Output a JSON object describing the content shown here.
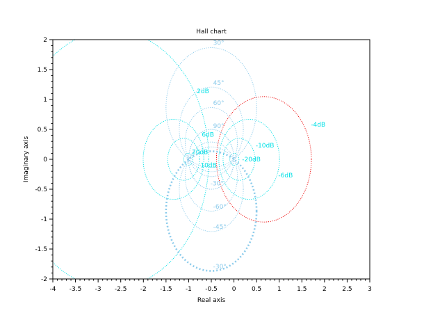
{
  "chart_data": {
    "type": "hall-chart",
    "title": "Hall chart",
    "xlabel": "Real axis",
    "ylabel": "Imaginary axis",
    "xlim": [
      -4,
      3
    ],
    "ylim": [
      -2,
      2
    ],
    "xticks": [
      -4,
      -3.5,
      -3,
      -2.5,
      -2,
      -1.5,
      -1,
      -0.5,
      0,
      0.5,
      1,
      1.5,
      2,
      2.5,
      3
    ],
    "xtick_labels": [
      "-4",
      "-3.5",
      "-3",
      "-2.5",
      "-2",
      "-1.5",
      "-1",
      "-0.5",
      "0",
      "0.5",
      "1",
      "1.5",
      "2",
      "2.5",
      "3"
    ],
    "yticks": [
      -2,
      -1.5,
      -1,
      -0.5,
      0,
      0.5,
      1,
      1.5,
      2
    ],
    "ytick_labels": [
      "-2",
      "-1.5",
      "-1",
      "-0.5",
      "0",
      "0.5",
      "1",
      "1.5",
      "2"
    ],
    "grid": false,
    "magnitude_contours_db": [
      -20,
      -10,
      -6,
      -4,
      2,
      6,
      10,
      20
    ],
    "phase_contours_deg": [
      -30,
      -45,
      -60,
      -90,
      30,
      45,
      60,
      90
    ],
    "labels": [
      {
        "text": "-4dB",
        "at": [
          1.7,
          0.58
        ],
        "kind": "mag"
      },
      {
        "text": "-6dB",
        "at": [
          0.98,
          -0.27
        ],
        "kind": "mag"
      },
      {
        "text": "-10dB",
        "at": [
          0.48,
          0.23
        ],
        "kind": "mag"
      },
      {
        "text": "-20dB",
        "at": [
          0.18,
          0.0
        ],
        "kind": "mag"
      },
      {
        "text": "2dB",
        "at": [
          -0.82,
          1.14
        ],
        "kind": "mag"
      },
      {
        "text": "6dB",
        "at": [
          -0.71,
          0.41
        ],
        "kind": "mag"
      },
      {
        "text": "10dB",
        "at": [
          -0.74,
          -0.1
        ],
        "kind": "mag"
      },
      {
        "text": "20dB",
        "at": [
          -0.93,
          0.12
        ],
        "kind": "mag"
      },
      {
        "text": "30°",
        "at": [
          -0.46,
          1.95
        ],
        "kind": "phase"
      },
      {
        "text": "45°",
        "at": [
          -0.46,
          1.28
        ],
        "kind": "phase"
      },
      {
        "text": "60°",
        "at": [
          -0.46,
          0.94
        ],
        "kind": "phase"
      },
      {
        "text": "90°",
        "at": [
          -0.46,
          0.56
        ],
        "kind": "phase"
      },
      {
        "text": "-30°",
        "at": [
          -0.52,
          -0.4
        ],
        "kind": "phase"
      },
      {
        "text": "-60°",
        "at": [
          -0.46,
          -0.79
        ],
        "kind": "phase"
      },
      {
        "text": "-45°",
        "at": [
          -0.46,
          -1.13
        ],
        "kind": "phase"
      },
      {
        "text": "-30°",
        "at": [
          -0.46,
          -1.79
        ],
        "kind": "phase"
      }
    ],
    "highlighted": [
      {
        "label": "-4dB",
        "color": "#ee0000"
      },
      {
        "label": "-30°",
        "color": "#8ccbeb",
        "dashed_bold": true
      }
    ],
    "colors": {
      "magnitude": "#00e0e6",
      "phase": "#8ccbeb",
      "highlight": "#ee0000",
      "axes": "#000000"
    }
  }
}
